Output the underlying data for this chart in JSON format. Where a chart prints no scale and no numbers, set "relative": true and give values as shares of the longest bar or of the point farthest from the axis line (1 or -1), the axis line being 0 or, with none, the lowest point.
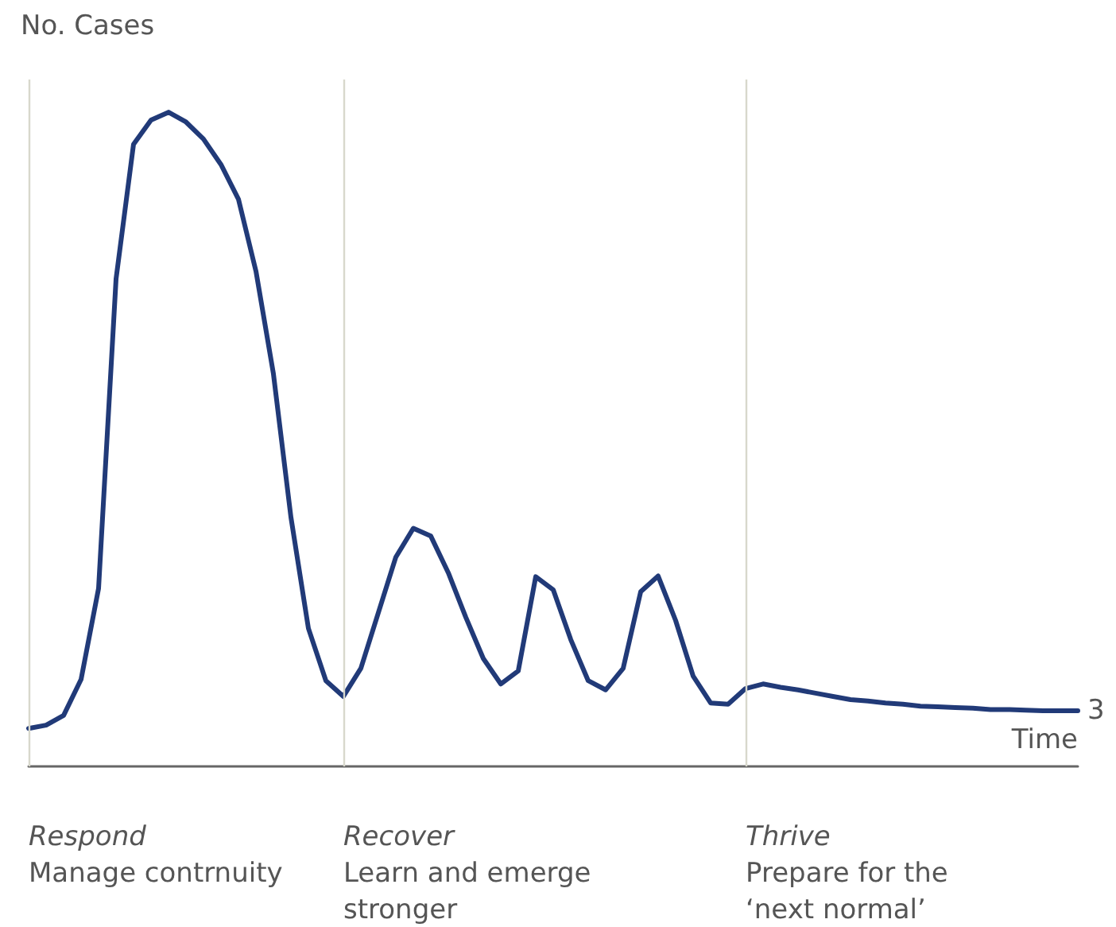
{
  "chart_data": {
    "type": "line",
    "relative": true,
    "xlabel": "Time",
    "ylabel": "No. Cases",
    "grid": false,
    "marker": "none",
    "line_style": "solid",
    "categories": [
      null,
      null,
      null,
      null,
      null,
      null,
      null,
      null,
      null,
      null,
      null,
      null,
      null,
      null,
      null,
      null,
      null,
      null,
      null,
      null,
      null,
      null,
      null,
      null,
      null,
      null,
      null,
      null,
      null,
      null,
      null,
      null,
      null,
      null,
      null,
      null,
      null,
      null,
      null,
      null,
      null,
      null,
      null,
      null,
      null,
      null,
      null,
      null,
      null,
      null,
      null,
      null,
      null,
      null,
      null,
      null,
      null,
      null,
      null,
      null,
      null
    ],
    "series": [
      {
        "color": "#213a78",
        "values": [
          0.058,
          0.063,
          0.078,
          0.133,
          0.272,
          0.745,
          0.951,
          0.988,
          1,
          0.985,
          0.959,
          0.92,
          0.867,
          0.757,
          0.6,
          0.381,
          0.211,
          0.131,
          0.107,
          0.15,
          0.235,
          0.32,
          0.364,
          0.352,
          0.296,
          0.228,
          0.165,
          0.126,
          0.146,
          0.29,
          0.27,
          0.194,
          0.131,
          0.117,
          0.15,
          0.267,
          0.291,
          0.223,
          0.138,
          0.097,
          0.095,
          0.119,
          0.126,
          0.121,
          0.117,
          0.112,
          0.107,
          0.102,
          0.1,
          0.097,
          0.095,
          0.092,
          0.091,
          0.09,
          0.089,
          0.087,
          0.087,
          0.086,
          0.085,
          0.085,
          0.085
        ]
      }
    ],
    "annotations": [
      "Respond\nManage contrnuity",
      "Recover\nLearn and emerge\nstronger",
      "Thrive\nPrepare for the\n‘next normal’",
      "3"
    ]
  }
}
